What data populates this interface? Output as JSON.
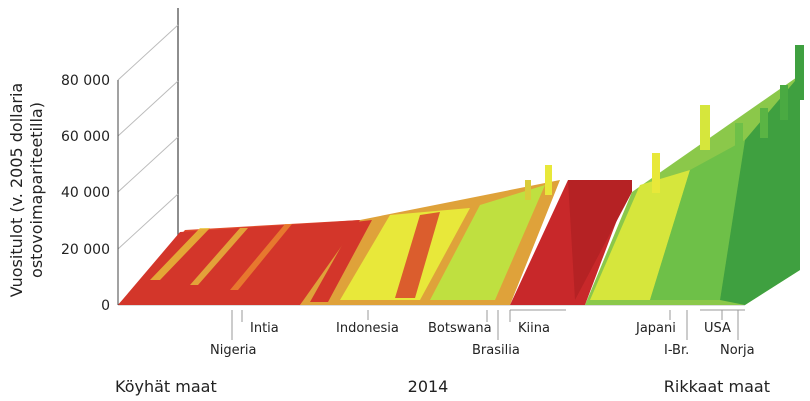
{
  "chart_data": {
    "type": "bar",
    "title": "",
    "ylabel_line1": "Vuositulot (v. 2005 dollaria",
    "ylabel_line2": "ostovoimapariteetilla)",
    "ylim": [
      0,
      80000
    ],
    "yticks": [
      {
        "value": 0,
        "label": "0"
      },
      {
        "value": 20000,
        "label": "20 000"
      },
      {
        "value": 40000,
        "label": "40 000"
      },
      {
        "value": 60000,
        "label": "60 000"
      },
      {
        "value": 80000,
        "label": "80 000"
      }
    ],
    "grid": false,
    "labelled_countries": [
      {
        "name": "Nigeria",
        "row": 2
      },
      {
        "name": "Intia",
        "row": 1
      },
      {
        "name": "Indonesia",
        "row": 1
      },
      {
        "name": "Botswana",
        "row": 1
      },
      {
        "name": "Brasilia",
        "row": 2
      },
      {
        "name": "Kiina",
        "row": 1
      },
      {
        "name": "Japani",
        "row": 1
      },
      {
        "name": "I-Br.",
        "row": 2
      },
      {
        "name": "USA",
        "row": 1
      },
      {
        "name": "Norja",
        "row": 2
      }
    ],
    "bottom_left": "Köyhät maat",
    "bottom_center": "2014",
    "bottom_right": "Rikkaat maat",
    "colors": {
      "poor": "#d3362a",
      "middle": "#e8e83a",
      "rich": "#3fa040",
      "kiina": "#c8282a"
    }
  }
}
